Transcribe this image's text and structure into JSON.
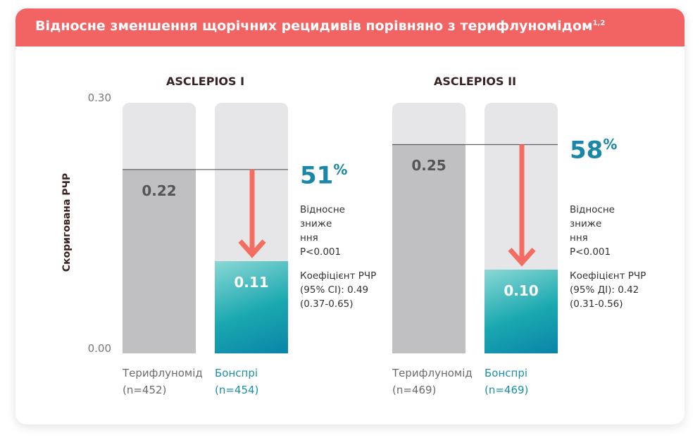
{
  "header": {
    "title": "Відносне зменшення щорічних рецидивів порівняно з терифлуномідом",
    "title_refs": "1,2"
  },
  "chart_data": [
    {
      "type": "bar",
      "title": "ASCLEPIOS I",
      "y_axis_label": "Скоригована РЧР",
      "categories": [
        "Терифлуномід (n=452)",
        "Бонспрі (n=454)"
      ],
      "values": [
        0.22,
        0.11
      ],
      "value_labels": [
        "0.22",
        "0.11"
      ],
      "colors": [
        "#c0c0c2",
        "#1aa8b0"
      ],
      "ylim": [
        0,
        0.3
      ],
      "yticks": [
        {
          "value": 0,
          "label": "0.00"
        },
        {
          "value": 0.3,
          "label": "0.30"
        }
      ],
      "reduction": 51,
      "reduction_unit": "%",
      "note_lines": [
        "Відносне",
        "зниже",
        "ння",
        "P<0.001"
      ],
      "ratio_lines": [
        "Коефіцієнт РЧР",
        "(95% CI): 0.49",
        "(0.37-0.65)"
      ]
    },
    {
      "type": "bar",
      "title": "ASCLEPIOS II",
      "categories": [
        "Терифлуномід (n=469)",
        "Бонспрі (n=469)"
      ],
      "values": [
        0.25,
        0.1
      ],
      "value_labels": [
        "0.25",
        "0.10"
      ],
      "colors": [
        "#c0c0c2",
        "#1aa8b0"
      ],
      "ylim": [
        0,
        0.3
      ],
      "reduction": 58,
      "reduction_unit": "%",
      "note_lines": [
        "Відносне",
        "зниже",
        "ння",
        "P<0.001"
      ],
      "ratio_lines": [
        "Коефіцієнт РЧР",
        "(95% ДІ): 0.42",
        "(0.31-0.56)"
      ]
    }
  ]
}
